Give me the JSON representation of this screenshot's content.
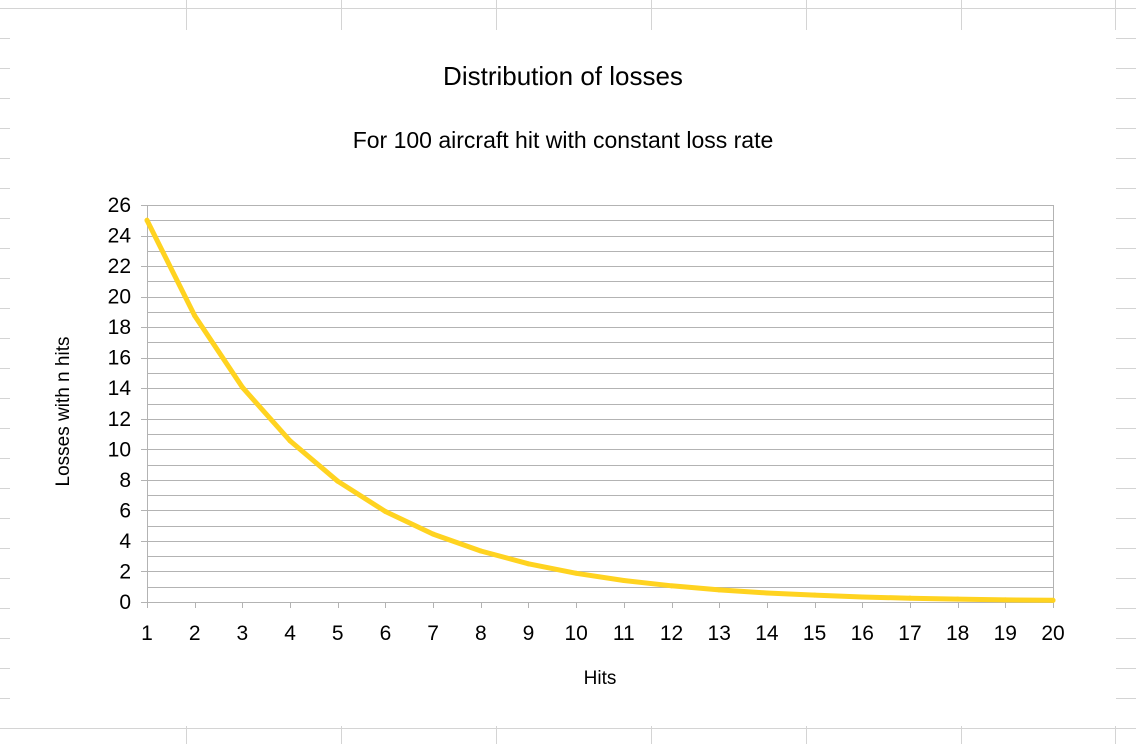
{
  "chart_data": {
    "type": "line",
    "title": "Distribution of losses",
    "subtitle": "For 100 aircraft hit with constant loss rate",
    "xlabel": "Hits",
    "ylabel": "Losses with n hits",
    "x": [
      1,
      2,
      3,
      4,
      5,
      6,
      7,
      8,
      9,
      10,
      11,
      12,
      13,
      14,
      15,
      16,
      17,
      18,
      19,
      20
    ],
    "series": [
      {
        "values": [
          25.0,
          18.75,
          14.06,
          10.55,
          7.91,
          5.93,
          4.45,
          3.34,
          2.5,
          1.88,
          1.41,
          1.06,
          0.79,
          0.59,
          0.45,
          0.33,
          0.25,
          0.19,
          0.14,
          0.11
        ],
        "color": "#ffd320"
      }
    ],
    "ylim": [
      0,
      26
    ],
    "yticks": [
      0,
      2,
      4,
      6,
      8,
      10,
      12,
      14,
      16,
      18,
      20,
      22,
      24,
      26
    ],
    "y_minor_step": 1,
    "grid": true,
    "legend": "none"
  }
}
